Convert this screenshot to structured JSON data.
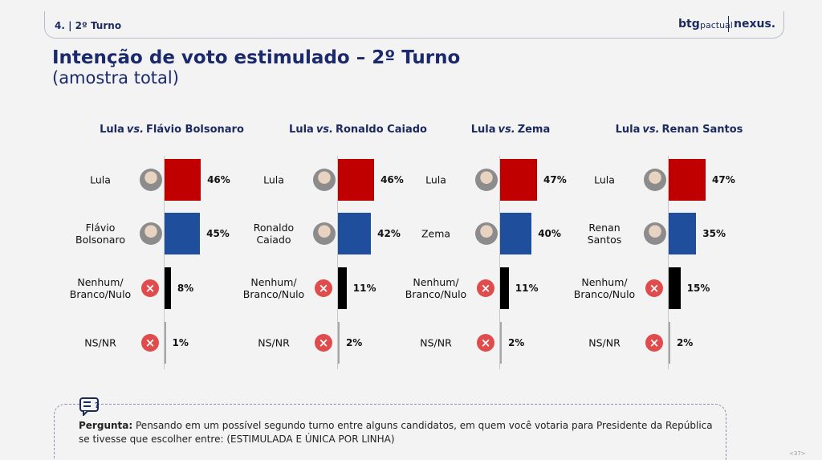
{
  "header": {
    "section": "4. | 2º Turno",
    "logo_left": "btg",
    "logo_mid": "pactual",
    "logo_right": "nexus."
  },
  "title": "Intenção de voto estimulado – 2º Turno",
  "subtitle": "(amostra total)",
  "chart_data": [
    {
      "type": "bar",
      "title": {
        "left": "Lula",
        "vs": "vs.",
        "right": "Flávio Bolsonaro"
      },
      "categories": [
        "Lula",
        "Flávio Bolsonaro",
        "Nenhum/ Branco/Nulo",
        "NS/NR"
      ],
      "values": [
        46,
        45,
        8,
        1
      ],
      "value_labels": [
        "46%",
        "45%",
        "8%",
        "1%"
      ],
      "colors": [
        "#c00000",
        "#1f4e9c",
        "#000000",
        "#a6a6a6"
      ]
    },
    {
      "type": "bar",
      "title": {
        "left": "Lula",
        "vs": "vs.",
        "right": "Ronaldo Caiado"
      },
      "categories": [
        "Lula",
        "Ronaldo Caiado",
        "Nenhum/ Branco/Nulo",
        "NS/NR"
      ],
      "values": [
        46,
        42,
        11,
        2
      ],
      "value_labels": [
        "46%",
        "42%",
        "11%",
        "2%"
      ],
      "colors": [
        "#c00000",
        "#1f4e9c",
        "#000000",
        "#a6a6a6"
      ]
    },
    {
      "type": "bar",
      "title": {
        "left": "Lula",
        "vs": "vs.",
        "right": "Zema"
      },
      "categories": [
        "Lula",
        "Zema",
        "Nenhum/ Branco/Nulo",
        "NS/NR"
      ],
      "values": [
        47,
        40,
        11,
        2
      ],
      "value_labels": [
        "47%",
        "40%",
        "11%",
        "2%"
      ],
      "colors": [
        "#c00000",
        "#1f4e9c",
        "#000000",
        "#a6a6a6"
      ]
    },
    {
      "type": "bar",
      "title": {
        "left": "Lula",
        "vs": "vs.",
        "right": "Renan Santos"
      },
      "categories": [
        "Lula",
        "Renan Santos",
        "Nenhum/ Branco/Nulo",
        "NS/NR"
      ],
      "values": [
        47,
        35,
        15,
        2
      ],
      "value_labels": [
        "47%",
        "35%",
        "15%",
        "2%"
      ],
      "colors": [
        "#c00000",
        "#1f4e9c",
        "#000000",
        "#a6a6a6"
      ]
    }
  ],
  "footer": {
    "label": "Pergunta:",
    "question": "Pensando em um possível segundo turno entre alguns candidatos, em quem você votaria para Presidente da República se tivesse que escolher entre: (ESTIMULADA E ÚNICA POR LINHA)",
    "page": "<37>"
  }
}
